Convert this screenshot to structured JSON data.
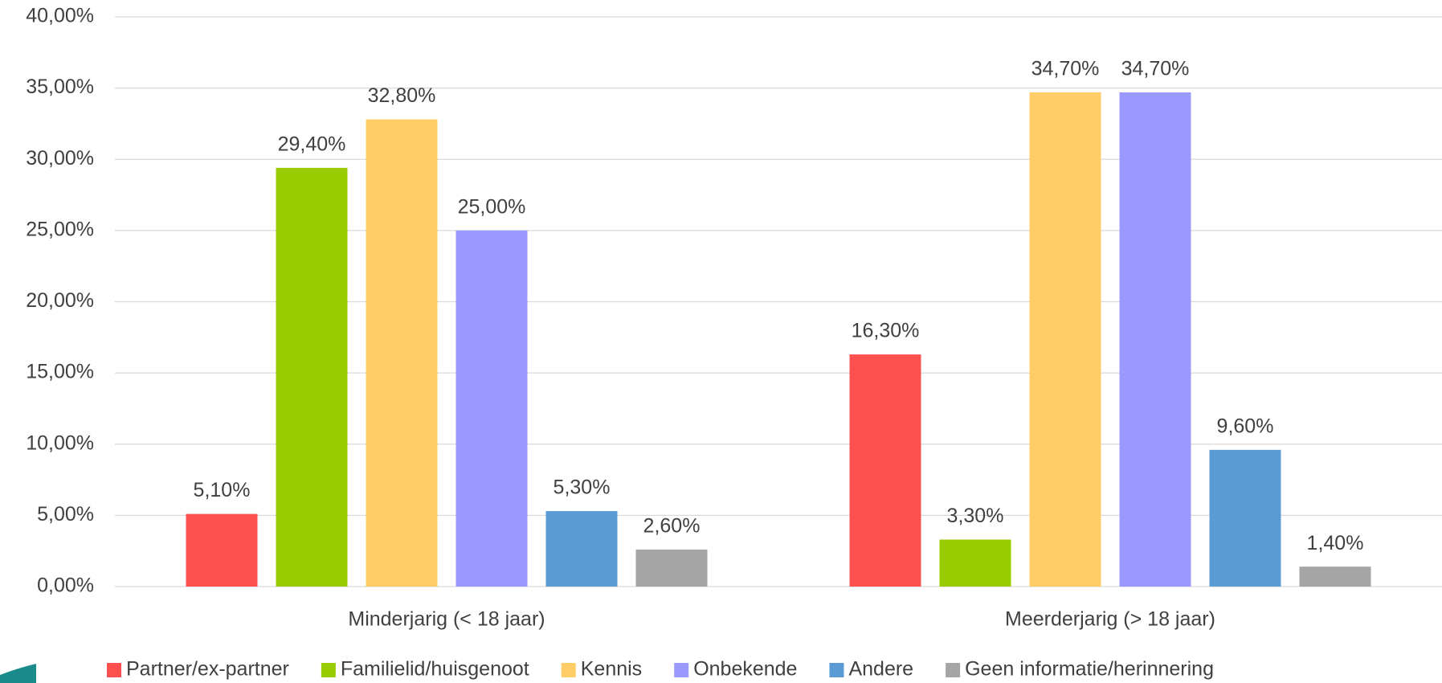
{
  "chart_data": {
    "type": "bar",
    "categories": [
      "Minderjarig (< 18 jaar)",
      "Meerderjarig (> 18 jaar)"
    ],
    "series": [
      {
        "name": "Partner/ex-partner",
        "color": "#ff5050",
        "values": [
          5.1,
          16.3
        ],
        "value_labels": [
          "5,10%",
          "16,30%"
        ]
      },
      {
        "name": "Familielid/huisgenoot",
        "color": "#99cc00",
        "values": [
          29.4,
          3.3
        ],
        "value_labels": [
          "29,40%",
          "3,30%"
        ]
      },
      {
        "name": "Kennis",
        "color": "#ffcc66",
        "values": [
          32.8,
          34.7
        ],
        "value_labels": [
          "32,80%",
          "34,70%"
        ]
      },
      {
        "name": "Onbekende",
        "color": "#9999ff",
        "values": [
          25.0,
          34.7
        ],
        "value_labels": [
          "25,00%",
          "34,70%"
        ]
      },
      {
        "name": "Andere",
        "color": "#5b9bd5",
        "values": [
          5.3,
          9.6
        ],
        "value_labels": [
          "5,30%",
          "9,60%"
        ]
      },
      {
        "name": "Geen informatie/herinnering",
        "color": "#a5a5a5",
        "values": [
          2.6,
          1.4
        ],
        "value_labels": [
          "2,60%",
          "1,40%"
        ]
      }
    ],
    "ylim": [
      0,
      40
    ],
    "yticks": [
      {
        "value": 0,
        "label": "0,00%"
      },
      {
        "value": 5,
        "label": "5,00%"
      },
      {
        "value": 10,
        "label": "10,00%"
      },
      {
        "value": 15,
        "label": "15,00%"
      },
      {
        "value": 20,
        "label": "20,00%"
      },
      {
        "value": 25,
        "label": "25,00%"
      },
      {
        "value": 30,
        "label": "30,00%"
      },
      {
        "value": 35,
        "label": "35,00%"
      },
      {
        "value": 40,
        "label": "40,00%"
      }
    ],
    "grid": true,
    "legend": "bottom"
  }
}
